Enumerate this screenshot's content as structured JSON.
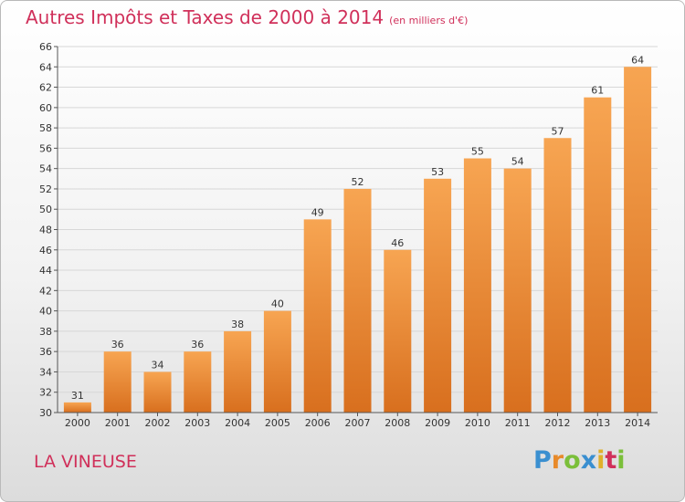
{
  "header": {
    "title": "Autres Impôts et Taxes de 2000 à 2014",
    "subtitle": "(en milliers d'€)"
  },
  "footer": {
    "place": "LA VINEUSE",
    "logo": "Proxiti"
  },
  "colors": {
    "title": "#d0305a",
    "bar_light": "#f7a552",
    "bar_dark": "#d86f1e"
  },
  "chart_data": {
    "type": "bar",
    "categories": [
      "2000",
      "2001",
      "2002",
      "2003",
      "2004",
      "2005",
      "2006",
      "2007",
      "2008",
      "2009",
      "2010",
      "2011",
      "2012",
      "2013",
      "2014"
    ],
    "values": [
      31,
      36,
      34,
      36,
      38,
      40,
      49,
      52,
      46,
      53,
      55,
      54,
      57,
      61,
      64
    ],
    "ylim": [
      30,
      66
    ],
    "yticks": [
      30,
      32,
      34,
      36,
      38,
      40,
      42,
      44,
      46,
      48,
      50,
      52,
      54,
      56,
      58,
      60,
      62,
      64,
      66
    ],
    "grid": true,
    "data_labels": true
  }
}
